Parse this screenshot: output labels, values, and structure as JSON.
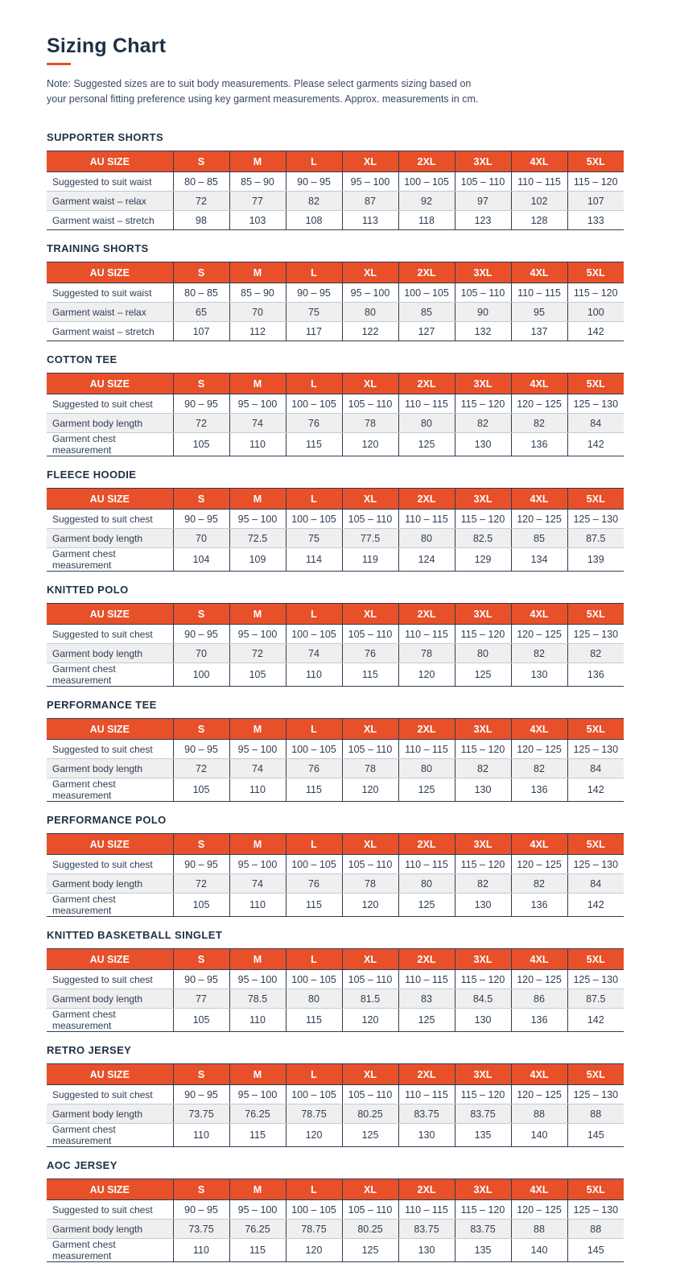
{
  "header": {
    "title": "Sizing Chart",
    "note_line1": "Note: Suggested sizes are to suit body measurements. Please select garments sizing based on",
    "note_line2": "your personal fitting preference using key garment measurements. Approx. measurements in cm."
  },
  "colors": {
    "accent_orange": "#E8502A",
    "heading_navy": "#1F3044",
    "body_text": "#2E3D54",
    "stripe_gray": "#EFEFEF",
    "grid_dark": "#2E3D54",
    "grid_light": "#C3C8D2",
    "header_row_text": "#FFFFFF"
  },
  "size_headers": [
    "AU SIZE",
    "S",
    "M",
    "L",
    "XL",
    "2XL",
    "3XL",
    "4XL",
    "5XL"
  ],
  "tables": [
    {
      "title": "SUPPORTER SHORTS",
      "rows": [
        {
          "label": "Suggested to suit waist",
          "values": [
            "80 – 85",
            "85 – 90",
            "90 – 95",
            "95 – 100",
            "100 – 105",
            "105 – 110",
            "110 – 115",
            "115 – 120"
          ]
        },
        {
          "label": "Garment waist – relax",
          "values": [
            "72",
            "77",
            "82",
            "87",
            "92",
            "97",
            "102",
            "107"
          ]
        },
        {
          "label": "Garment waist – stretch",
          "values": [
            "98",
            "103",
            "108",
            "113",
            "118",
            "123",
            "128",
            "133"
          ]
        }
      ]
    },
    {
      "title": "TRAINING SHORTS",
      "rows": [
        {
          "label": "Suggested to suit waist",
          "values": [
            "80 – 85",
            "85 – 90",
            "90 – 95",
            "95 – 100",
            "100 – 105",
            "105 – 110",
            "110 – 115",
            "115 – 120"
          ]
        },
        {
          "label": "Garment waist – relax",
          "values": [
            "65",
            "70",
            "75",
            "80",
            "85",
            "90",
            "95",
            "100"
          ]
        },
        {
          "label": "Garment waist – stretch",
          "values": [
            "107",
            "112",
            "117",
            "122",
            "127",
            "132",
            "137",
            "142"
          ]
        }
      ]
    },
    {
      "title": "COTTON TEE",
      "rows": [
        {
          "label": "Suggested to suit chest",
          "values": [
            "90 – 95",
            "95 – 100",
            "100 – 105",
            "105 – 110",
            "110 – 115",
            "115 – 120",
            "120 – 125",
            "125 – 130"
          ]
        },
        {
          "label": "Garment body length",
          "values": [
            "72",
            "74",
            "76",
            "78",
            "80",
            "82",
            "82",
            "84"
          ]
        },
        {
          "label": "Garment chest measurement",
          "values": [
            "105",
            "110",
            "115",
            "120",
            "125",
            "130",
            "136",
            "142"
          ]
        }
      ]
    },
    {
      "title": "FLEECE HOODIE",
      "rows": [
        {
          "label": "Suggested to suit chest",
          "values": [
            "90 – 95",
            "95 – 100",
            "100 – 105",
            "105 – 110",
            "110 – 115",
            "115 – 120",
            "120 – 125",
            "125 – 130"
          ]
        },
        {
          "label": "Garment body length",
          "values": [
            "70",
            "72.5",
            "75",
            "77.5",
            "80",
            "82.5",
            "85",
            "87.5"
          ]
        },
        {
          "label": "Garment chest measurement",
          "values": [
            "104",
            "109",
            "114",
            "119",
            "124",
            "129",
            "134",
            "139"
          ]
        }
      ]
    },
    {
      "title": "KNITTED POLO",
      "rows": [
        {
          "label": "Suggested to suit chest",
          "values": [
            "90 – 95",
            "95 – 100",
            "100 – 105",
            "105 – 110",
            "110 – 115",
            "115 – 120",
            "120 – 125",
            "125 – 130"
          ]
        },
        {
          "label": "Garment body length",
          "values": [
            "70",
            "72",
            "74",
            "76",
            "78",
            "80",
            "82",
            "82"
          ]
        },
        {
          "label": "Garment chest measurement",
          "values": [
            "100",
            "105",
            "110",
            "115",
            "120",
            "125",
            "130",
            "136"
          ]
        }
      ]
    },
    {
      "title": "PERFORMANCE TEE",
      "rows": [
        {
          "label": "Suggested to suit chest",
          "values": [
            "90 – 95",
            "95 – 100",
            "100 – 105",
            "105 – 110",
            "110 – 115",
            "115 – 120",
            "120 – 125",
            "125 – 130"
          ]
        },
        {
          "label": "Garment body length",
          "values": [
            "72",
            "74",
            "76",
            "78",
            "80",
            "82",
            "82",
            "84"
          ]
        },
        {
          "label": "Garment chest measurement",
          "values": [
            "105",
            "110",
            "115",
            "120",
            "125",
            "130",
            "136",
            "142"
          ]
        }
      ]
    },
    {
      "title": "PERFORMANCE POLO",
      "rows": [
        {
          "label": "Suggested to suit chest",
          "values": [
            "90 – 95",
            "95 – 100",
            "100 – 105",
            "105 – 110",
            "110 – 115",
            "115 – 120",
            "120 – 125",
            "125 – 130"
          ]
        },
        {
          "label": "Garment body length",
          "values": [
            "72",
            "74",
            "76",
            "78",
            "80",
            "82",
            "82",
            "84"
          ]
        },
        {
          "label": "Garment chest measurement",
          "values": [
            "105",
            "110",
            "115",
            "120",
            "125",
            "130",
            "136",
            "142"
          ]
        }
      ]
    },
    {
      "title": "KNITTED BASKETBALL SINGLET",
      "rows": [
        {
          "label": "Suggested to suit chest",
          "values": [
            "90 – 95",
            "95 – 100",
            "100 – 105",
            "105 – 110",
            "110 – 115",
            "115 – 120",
            "120 – 125",
            "125 – 130"
          ]
        },
        {
          "label": "Garment body length",
          "values": [
            "77",
            "78.5",
            "80",
            "81.5",
            "83",
            "84.5",
            "86",
            "87.5"
          ]
        },
        {
          "label": "Garment chest measurement",
          "values": [
            "105",
            "110",
            "115",
            "120",
            "125",
            "130",
            "136",
            "142"
          ]
        }
      ]
    },
    {
      "title": "RETRO JERSEY",
      "rows": [
        {
          "label": "Suggested to suit chest",
          "values": [
            "90 – 95",
            "95 – 100",
            "100 – 105",
            "105 – 110",
            "110 – 115",
            "115 – 120",
            "120 – 125",
            "125 – 130"
          ]
        },
        {
          "label": "Garment body length",
          "values": [
            "73.75",
            "76.25",
            "78.75",
            "80.25",
            "83.75",
            "83.75",
            "88",
            "88"
          ]
        },
        {
          "label": "Garment chest measurement",
          "values": [
            "110",
            "115",
            "120",
            "125",
            "130",
            "135",
            "140",
            "145"
          ]
        }
      ]
    },
    {
      "title": "AOC JERSEY",
      "rows": [
        {
          "label": "Suggested to suit chest",
          "values": [
            "90 – 95",
            "95 – 100",
            "100 – 105",
            "105 – 110",
            "110 – 115",
            "115 – 120",
            "120 – 125",
            "125 – 130"
          ]
        },
        {
          "label": "Garment body length",
          "values": [
            "73.75",
            "76.25",
            "78.75",
            "80.25",
            "83.75",
            "83.75",
            "88",
            "88"
          ]
        },
        {
          "label": "Garment chest measurement",
          "values": [
            "110",
            "115",
            "120",
            "125",
            "130",
            "135",
            "140",
            "145"
          ]
        }
      ]
    }
  ]
}
